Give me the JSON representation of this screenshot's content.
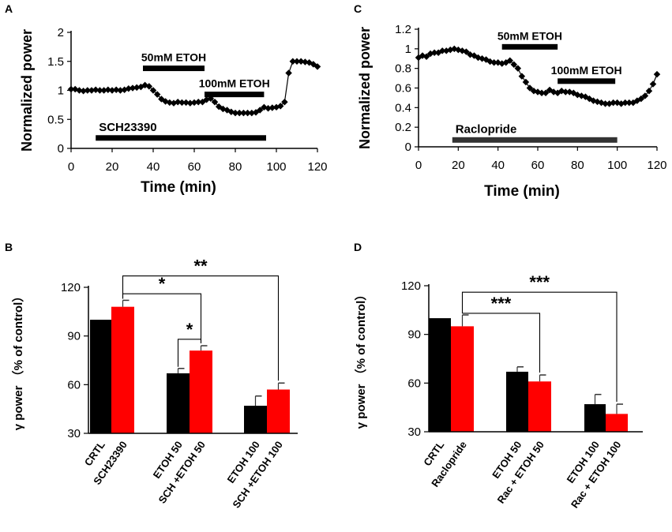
{
  "chart_data": [
    {
      "panel": "A",
      "type": "line",
      "xlabel": "Time (min)",
      "ylabel": "Normalized power",
      "xlim": [
        0,
        120
      ],
      "ylim": [
        0,
        2
      ],
      "xticks": [
        "0",
        "20",
        "40",
        "60",
        "80",
        "100",
        "120"
      ],
      "yticks": [
        "0",
        "0.5",
        "1",
        "1.5",
        "2"
      ],
      "series": [
        {
          "name": "Normalized power",
          "x": [
            0,
            2,
            4,
            6,
            8,
            10,
            12,
            14,
            16,
            18,
            20,
            22,
            24,
            26,
            28,
            30,
            32,
            34,
            36,
            38,
            40,
            42,
            44,
            46,
            48,
            50,
            52,
            54,
            56,
            58,
            60,
            62,
            64,
            66,
            68,
            70,
            72,
            74,
            76,
            78,
            80,
            82,
            84,
            86,
            88,
            90,
            92,
            94,
            96,
            98,
            100,
            102,
            104,
            106,
            108,
            110,
            112,
            114,
            116,
            118,
            120
          ],
          "y": [
            1.02,
            1.02,
            1.0,
            0.99,
            1.0,
            1.0,
            1.01,
            1.0,
            1.0,
            1.01,
            1.0,
            1.01,
            1.0,
            1.01,
            1.03,
            1.04,
            1.05,
            1.06,
            1.09,
            1.07,
            1.0,
            0.93,
            0.85,
            0.81,
            0.79,
            0.78,
            0.8,
            0.79,
            0.79,
            0.78,
            0.79,
            0.8,
            0.8,
            0.84,
            0.86,
            0.8,
            0.72,
            0.68,
            0.66,
            0.63,
            0.61,
            0.61,
            0.61,
            0.61,
            0.61,
            0.62,
            0.66,
            0.71,
            0.69,
            0.7,
            0.71,
            0.73,
            0.8,
            1.3,
            1.5,
            1.5,
            1.5,
            1.49,
            1.48,
            1.45,
            1.41
          ]
        }
      ],
      "segments": [
        {
          "label": "50mM ETOH",
          "start": 35,
          "end": 65,
          "level": 1.38
        },
        {
          "label": "100mM ETOH",
          "start": 65,
          "end": 94,
          "level": 0.93
        },
        {
          "label": "SCH23390",
          "start": 12,
          "end": 95,
          "level": 0.18
        }
      ]
    },
    {
      "panel": "C",
      "type": "line",
      "xlabel": "Time (min)",
      "ylabel": "Normalized power",
      "xlim": [
        0,
        120
      ],
      "ylim": [
        0,
        1.2
      ],
      "xticks": [
        "0",
        "20",
        "40",
        "60",
        "80",
        "100",
        "120"
      ],
      "yticks": [
        "0",
        "0.2",
        "0.4",
        "0.6",
        "0.8",
        "1",
        "1.2"
      ],
      "series": [
        {
          "name": "Normalized power",
          "x": [
            0,
            2,
            4,
            6,
            8,
            10,
            12,
            14,
            16,
            18,
            20,
            22,
            24,
            26,
            28,
            30,
            32,
            34,
            36,
            38,
            40,
            42,
            44,
            46,
            48,
            50,
            52,
            54,
            56,
            58,
            60,
            62,
            64,
            66,
            68,
            70,
            72,
            74,
            76,
            78,
            80,
            82,
            84,
            86,
            88,
            90,
            92,
            94,
            96,
            98,
            100,
            102,
            104,
            106,
            108,
            110,
            112,
            114,
            116,
            118,
            120
          ],
          "y": [
            0.91,
            0.93,
            0.92,
            0.95,
            0.96,
            0.96,
            0.98,
            0.98,
            0.99,
            1.0,
            0.99,
            0.98,
            0.97,
            0.94,
            0.93,
            0.91,
            0.9,
            0.89,
            0.87,
            0.86,
            0.86,
            0.85,
            0.86,
            0.88,
            0.84,
            0.8,
            0.72,
            0.66,
            0.6,
            0.57,
            0.56,
            0.55,
            0.55,
            0.58,
            0.56,
            0.55,
            0.57,
            0.56,
            0.56,
            0.55,
            0.53,
            0.52,
            0.51,
            0.49,
            0.47,
            0.46,
            0.45,
            0.44,
            0.44,
            0.45,
            0.45,
            0.44,
            0.45,
            0.45,
            0.45,
            0.47,
            0.49,
            0.52,
            0.57,
            0.64,
            0.74
          ]
        }
      ],
      "segments": [
        {
          "label": "50mM ETOH",
          "start": 42,
          "end": 70,
          "level": 1.02
        },
        {
          "label": "100mM ETOH",
          "start": 70,
          "end": 99,
          "level": 0.67
        },
        {
          "label": "Raclopride",
          "start": 17,
          "end": 100,
          "level": 0.07
        }
      ]
    },
    {
      "panel": "B",
      "type": "bar",
      "ylabel": "γ power （% of control）",
      "ylim": [
        30,
        120
      ],
      "yticks": [
        "30",
        "60",
        "90",
        "120"
      ],
      "categories": [
        "CRTL",
        "SCH23390",
        "ETOH 50",
        "SCH +ETOH 50",
        "ETOH 100",
        "SCH +ETOH 100"
      ],
      "values": [
        100,
        108,
        67,
        81,
        47,
        57
      ],
      "errors": [
        0,
        4,
        3,
        3,
        6,
        4
      ],
      "colors": [
        "#000000",
        "#ff0000",
        "#000000",
        "#ff0000",
        "#000000",
        "#ff0000"
      ],
      "significance": [
        {
          "label": "*",
          "from": 1,
          "to": 3,
          "y": 116
        },
        {
          "label": "*",
          "from": 2,
          "to": 3,
          "y": 88
        },
        {
          "label": "**",
          "from": 1,
          "to": 5,
          "y": 127
        }
      ]
    },
    {
      "panel": "D",
      "type": "bar",
      "ylabel": "γ power （% of control）",
      "ylim": [
        30,
        120
      ],
      "yticks": [
        "30",
        "60",
        "90",
        "120"
      ],
      "categories": [
        "CRTL",
        "Raclopride",
        "ETOH  50",
        "Rac + ETOH  50",
        "ETOH 100",
        "Rac + ETOH  100"
      ],
      "values": [
        100,
        95,
        67,
        61,
        47,
        41
      ],
      "errors": [
        0,
        7,
        3,
        4,
        6,
        6
      ],
      "colors": [
        "#000000",
        "#ff0000",
        "#000000",
        "#ff0000",
        "#000000",
        "#ff0000"
      ],
      "significance": [
        {
          "label": "***",
          "from": 1,
          "to": 3,
          "y": 103
        },
        {
          "label": "***",
          "from": 1,
          "to": 5,
          "y": 116
        }
      ]
    }
  ]
}
